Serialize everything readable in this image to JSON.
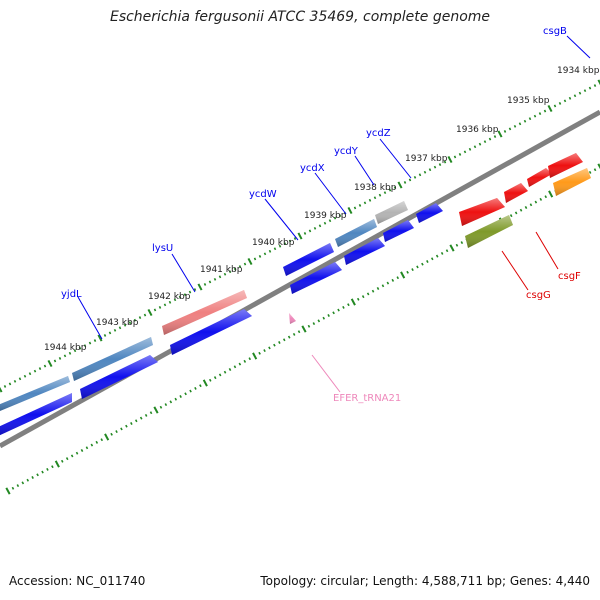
{
  "title": "Escherichia fergusonii ATCC 35469, complete genome",
  "footer": {
    "accession": "Accession: NC_011740",
    "topology": "Topology: circular; Length: 4,588,711 bp; Genes: 4,440"
  },
  "ticks": [
    {
      "label": "1934 kbp"
    },
    {
      "label": "1935 kbp"
    },
    {
      "label": "1936 kbp"
    },
    {
      "label": "1937 kbp"
    },
    {
      "label": "1938 kbp"
    },
    {
      "label": "1939 kbp"
    },
    {
      "label": "1940 kbp"
    },
    {
      "label": "1941 kbp"
    },
    {
      "label": "1942 kbp"
    },
    {
      "label": "1943 kbp"
    },
    {
      "label": "1944 kbp"
    }
  ],
  "genes": [
    {
      "name": "csgB",
      "color": "#0000ee"
    },
    {
      "name": "ycdZ",
      "color": "#0000ee"
    },
    {
      "name": "ycdY",
      "color": "#0000ee"
    },
    {
      "name": "ycdX",
      "color": "#0000ee"
    },
    {
      "name": "ycdW",
      "color": "#0000ee"
    },
    {
      "name": "lysU",
      "color": "#0000ee"
    },
    {
      "name": "yjdL",
      "color": "#0000ee"
    },
    {
      "name": "csgF",
      "color": "#dd0000"
    },
    {
      "name": "csgG",
      "color": "#dd0000"
    },
    {
      "name": "EFER_tRNA21",
      "color": "#ee88bb"
    }
  ],
  "colors": {
    "backbone": "#808080",
    "tick_track": "#228822",
    "cds_forward": "#1010ee",
    "cds_lightblue": "#4f86c0",
    "cds_gray": "#b4b4b4",
    "cds_pink": "#ef8080",
    "cds_red": "#ee1111",
    "cds_olive": "#7f9a2a",
    "cds_orange": "#ff9a1a",
    "trna": "#ee88bb"
  }
}
